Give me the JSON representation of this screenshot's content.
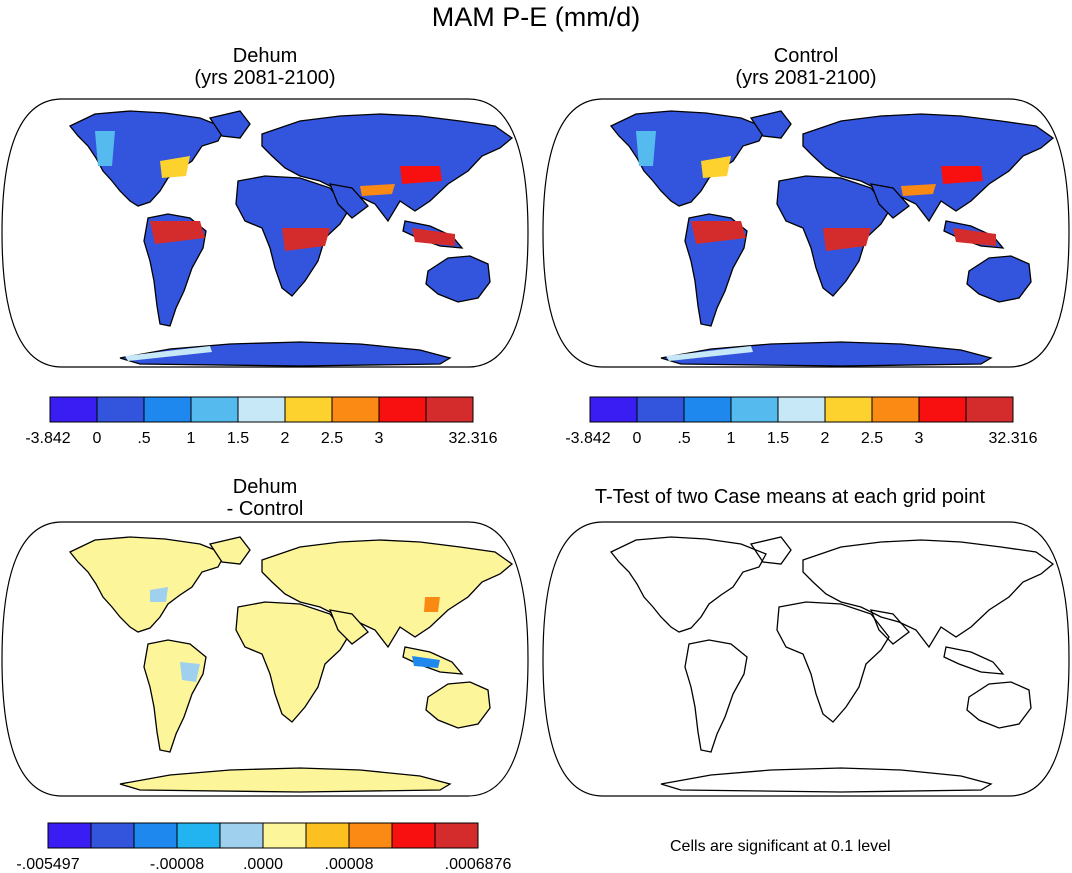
{
  "title": "MAM P-E (mm/d)",
  "panels": [
    {
      "id": "dehum",
      "title_line1": "Dehum",
      "title_line2": "(yrs 2081-2100)",
      "fill": "field"
    },
    {
      "id": "control",
      "title_line1": "Control",
      "title_line2": "(yrs 2081-2100)",
      "fill": "field"
    },
    {
      "id": "diff",
      "title_line1": "Dehum",
      "title_line2": "- Control",
      "fill": "diff"
    },
    {
      "id": "ttest",
      "title_line1": "T-Test of two Case means at each grid point",
      "title_line2": "",
      "fill": "none"
    }
  ],
  "colorbar_top": {
    "colors": [
      "#3a1df2",
      "#3355dd",
      "#1e88ee",
      "#55bbee",
      "#c7e8f7",
      "#fdd12e",
      "#fb8a14",
      "#f81010",
      "#d42c2c"
    ],
    "labels": [
      "-3.842",
      "0",
      ".5",
      "1",
      "1.5",
      "2",
      "2.5",
      "3",
      "32.316"
    ]
  },
  "colorbar_diff": {
    "colors": [
      "#3a1df2",
      "#3355dd",
      "#1e88ee",
      "#22b4f0",
      "#9fd0ee",
      "#fdf59a",
      "#fdc021",
      "#fb8a14",
      "#f81010",
      "#d42c2c"
    ],
    "labels": [
      "-.005497",
      "-.00008",
      ".0000",
      ".00008",
      ".0006876"
    ]
  },
  "note": "Cells are significant at 0.1 level"
}
